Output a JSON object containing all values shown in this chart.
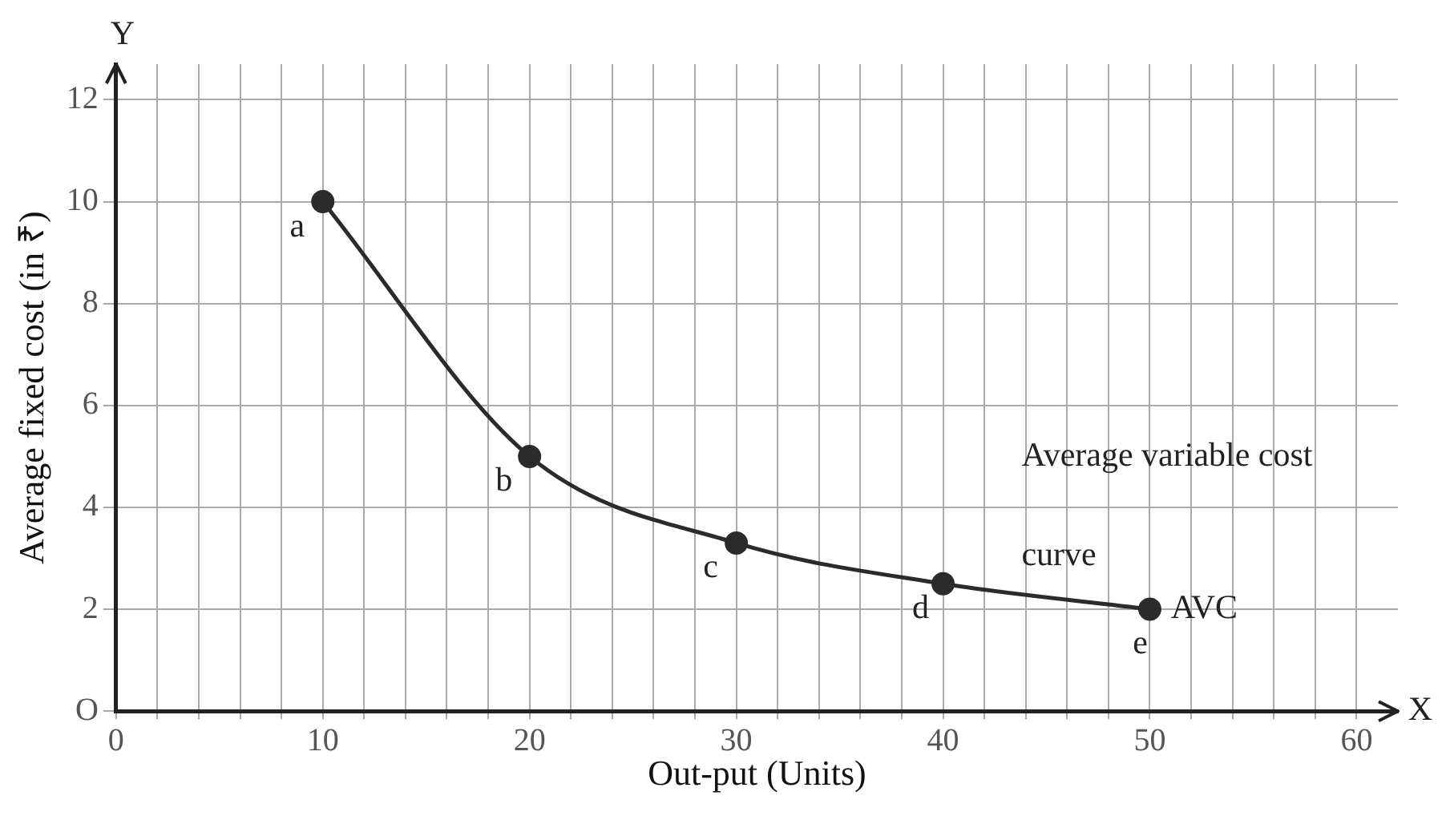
{
  "chart_data": {
    "type": "line",
    "xlabel": "Out-put (Units)",
    "ylabel": "Average fixed cost (in ₹)",
    "x": [
      10,
      20,
      30,
      40,
      50
    ],
    "series": [
      {
        "color": "#2b2b2b",
        "values": [
          10,
          5,
          3.3,
          2.5,
          2
        ]
      }
    ],
    "xlim": [
      0,
      62
    ],
    "ylim": [
      0,
      12.7
    ],
    "xticks": [
      0,
      {
        "value": 2,
        "label": null
      },
      {
        "value": 4,
        "label": null
      },
      {
        "value": 6,
        "label": null
      },
      {
        "value": 8,
        "label": null
      },
      10,
      {
        "value": 12,
        "label": null
      },
      {
        "value": 14,
        "label": null
      },
      {
        "value": 16,
        "label": null
      },
      {
        "value": 18,
        "label": null
      },
      20,
      {
        "value": 22,
        "label": null
      },
      {
        "value": 24,
        "label": null
      },
      {
        "value": 26,
        "label": null
      },
      {
        "value": 28,
        "label": null
      },
      30,
      {
        "value": 32,
        "label": null
      },
      {
        "value": 34,
        "label": null
      },
      {
        "value": 36,
        "label": null
      },
      {
        "value": 38,
        "label": null
      },
      40,
      {
        "value": 42,
        "label": null
      },
      {
        "value": 44,
        "label": null
      },
      {
        "value": 46,
        "label": null
      },
      {
        "value": 48,
        "label": null
      },
      50,
      {
        "value": 52,
        "label": null
      },
      {
        "value": 54,
        "label": null
      },
      {
        "value": 56,
        "label": null
      },
      {
        "value": 58,
        "label": null
      },
      60
    ],
    "yticks": [
      {
        "value": 0,
        "label": "O"
      },
      2,
      4,
      6,
      8,
      10,
      12
    ],
    "grid": true,
    "legend": false,
    "marker": "circle",
    "line_style": "solid",
    "annotations": [
      {
        "text": "a",
        "x": 10,
        "y": 10
      },
      {
        "text": "b",
        "x": 20,
        "y": 5
      },
      {
        "text": "c",
        "x": 30,
        "y": 3.3
      },
      {
        "text": "d",
        "x": 40,
        "y": 2.5
      },
      {
        "text": "e",
        "x": 50,
        "y": 2
      },
      {
        "text": "AVC",
        "x": 50,
        "y": 2
      },
      "Average variable cost curve",
      "Y",
      "X"
    ]
  }
}
